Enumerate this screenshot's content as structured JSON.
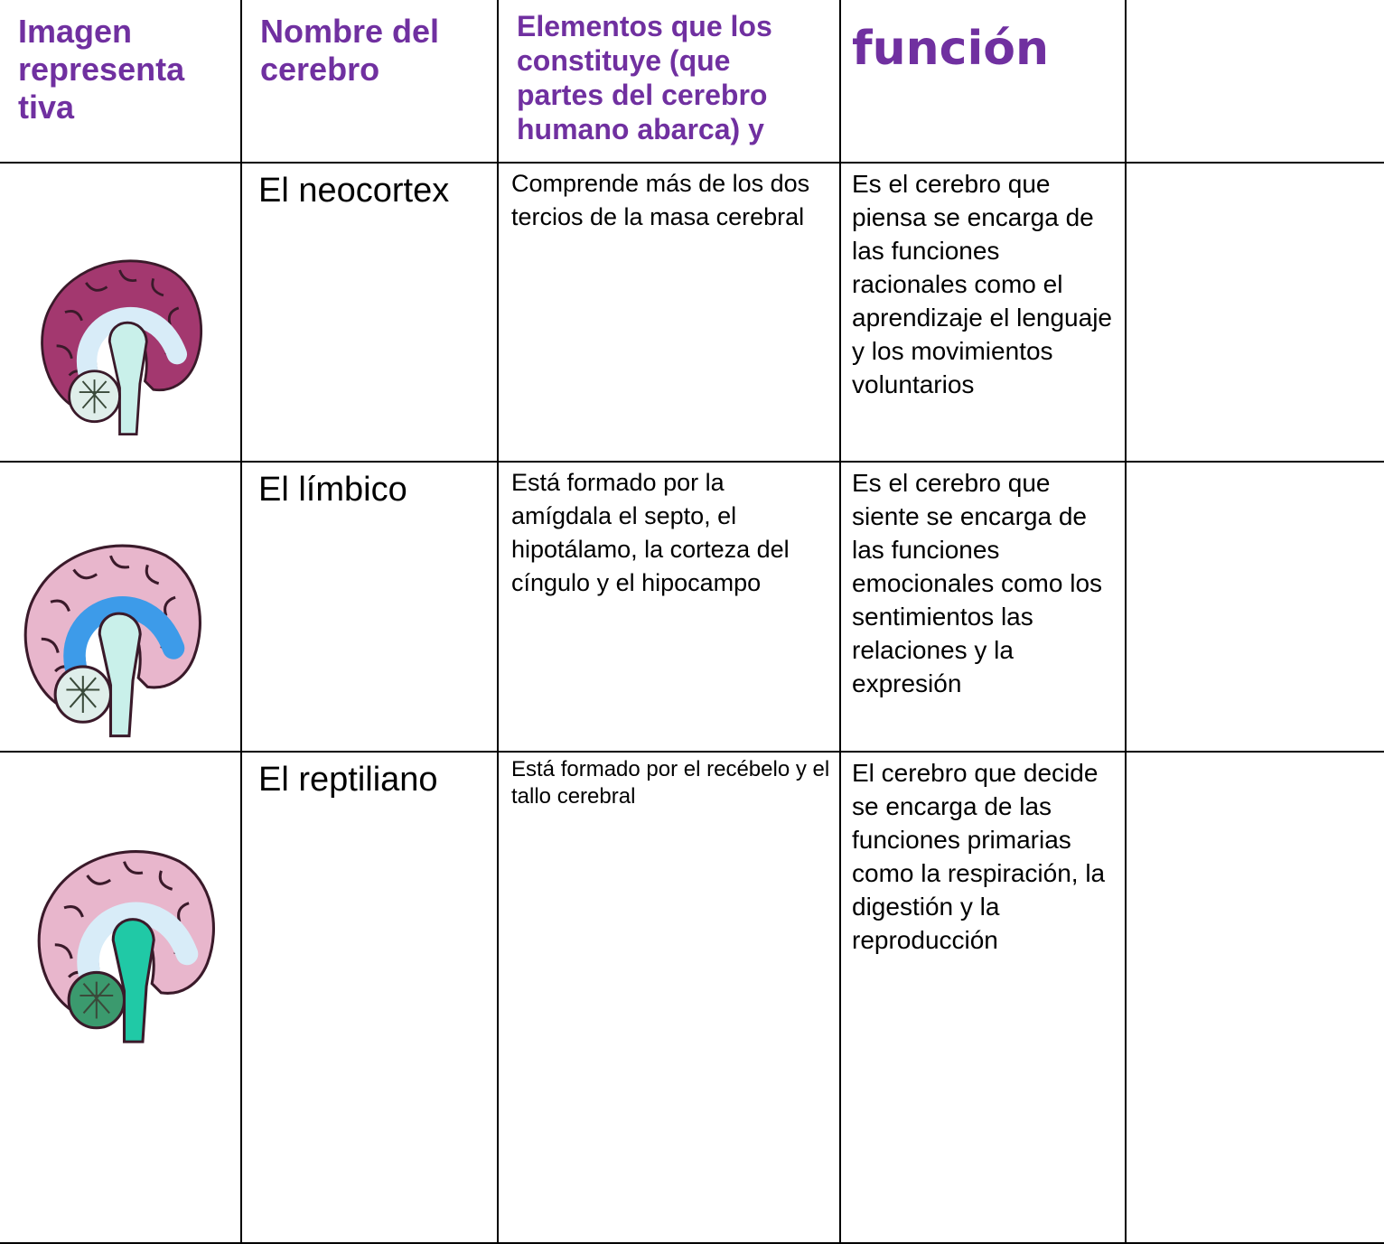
{
  "header": [
    "Imagen representa tiva",
    "Nombre del cerebro",
    "Elementos que los constituye (que partes del cerebro humano abarca)  y",
    "función"
  ],
  "rows": [
    {
      "name": "El neocortex",
      "elements": "Comprende más de los dos tercios de la  masa cerebral",
      "function": "Es el cerebro que piensa se encarga de las funciones racionales como el aprendizaje el lenguaje y los movimientos voluntarios"
    },
    {
      "name": "El límbico",
      "elements": "Está formado por la amígdala el septo, el hipotálamo, la corteza del cíngulo y el hipocampo",
      "function": "Es el cerebro que siente se encarga de las funciones emocionales como los sentimientos las relaciones y la expresión"
    },
    {
      "name": "El reptiliano",
      "elements": "Está formado por el recébelo y el tallo cerebral",
      "function": "El cerebro que decide  se encarga de las funciones primarias como la respiración, la digestión y la reproducción"
    }
  ]
}
